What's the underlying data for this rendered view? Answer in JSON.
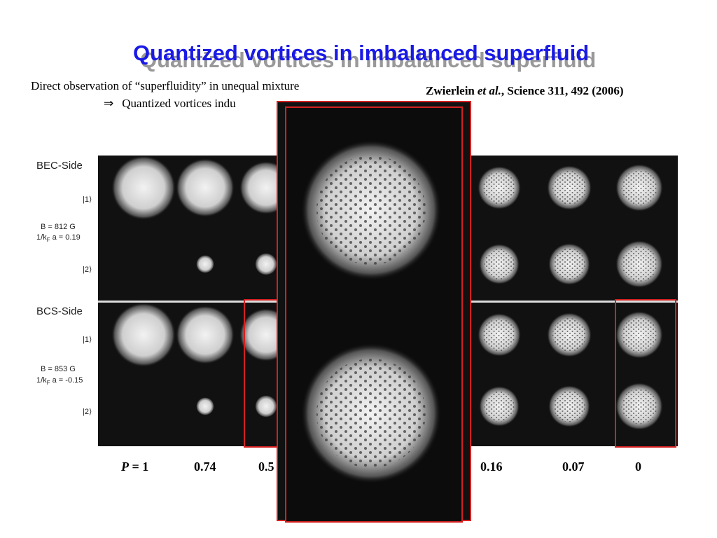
{
  "title": "Quantized vortices in imbalanced superfluid",
  "body": {
    "line1": "Direct observation of “superfluidity” in unequal mixture",
    "line2_arrow": "⇒",
    "line2": "Quantized vortices indu"
  },
  "citation": {
    "authors": "Zwierlein",
    "etal": "et al.",
    "ref": ", Science 311, 492 (2006)"
  },
  "figure": {
    "bec": {
      "side": "BEC-Side",
      "state1": "|1⟩",
      "field": "B = 812 G",
      "coupling": {
        "pre": "1/k",
        "sub": "F",
        "post": " a = 0.19"
      },
      "state2": "|2⟩"
    },
    "bcs": {
      "side": "BCS-Side",
      "state1": "|1⟩",
      "field": "B = 853 G",
      "coupling": {
        "pre": "1/k",
        "sub": "F",
        "post": " a = -0.15"
      },
      "state2": "|2⟩"
    },
    "polarization": {
      "symbol": "P",
      "first": "= 1",
      "values": [
        "0.74",
        "0.5",
        "0.16",
        "0.07",
        "0"
      ]
    }
  }
}
